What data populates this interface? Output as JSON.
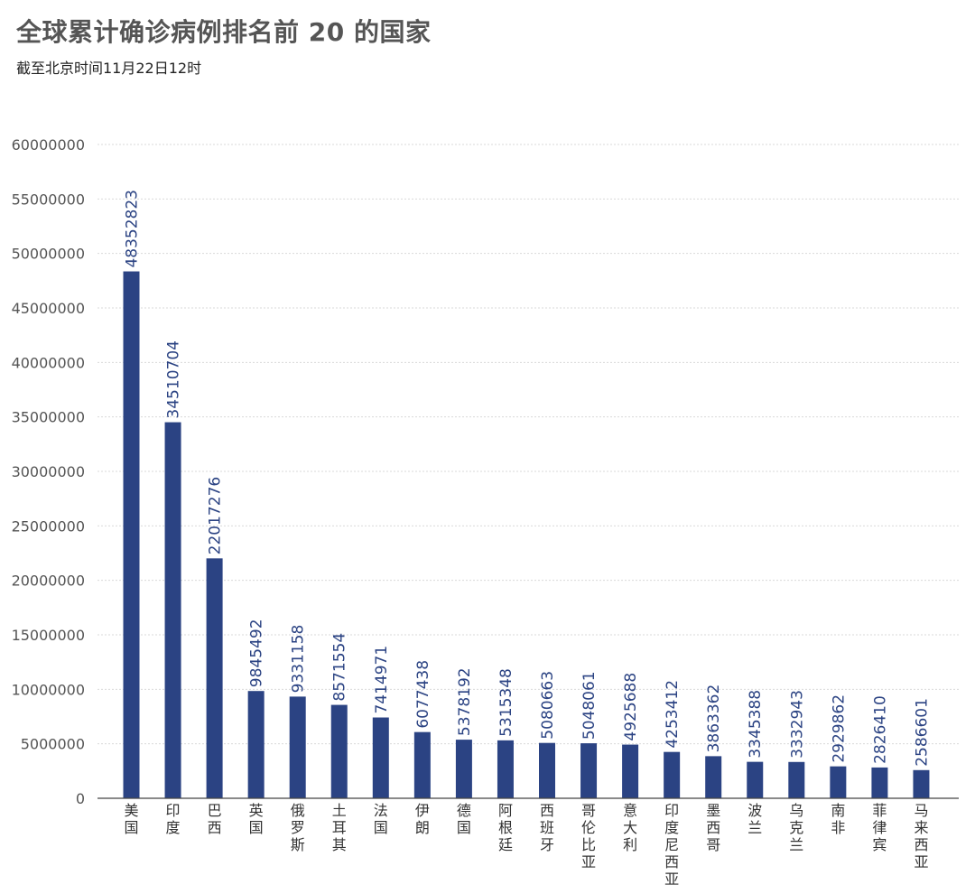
{
  "header": {
    "title": "全球累计确诊病例排名前 20 的国家",
    "subtitle": "截至北京时间11月22日12时"
  },
  "colors": {
    "bar": "#2b4383",
    "grid": "#d9d9d9",
    "axis": "#444444"
  },
  "chart_data": {
    "type": "bar",
    "title": "全球累计确诊病例排名前 20 的国家",
    "subtitle": "截至北京时间11月22日12时",
    "xlabel": "",
    "ylabel": "",
    "ylim": [
      0,
      60000000
    ],
    "yticks": [
      0,
      5000000,
      10000000,
      15000000,
      20000000,
      25000000,
      30000000,
      35000000,
      40000000,
      45000000,
      50000000,
      55000000,
      60000000
    ],
    "grid": true,
    "categories": [
      "美国",
      "印度",
      "巴西",
      "英国",
      "俄罗斯",
      "土耳其",
      "法国",
      "伊朗",
      "德国",
      "阿根廷",
      "西班牙",
      "哥伦比亚",
      "意大利",
      "印度尼西亚",
      "墨西哥",
      "波兰",
      "乌克兰",
      "南非",
      "菲律宾",
      "马来西亚"
    ],
    "values": [
      48352823,
      34510704,
      22017276,
      9845492,
      9331158,
      8571554,
      7414971,
      6077438,
      5378192,
      5315348,
      5080663,
      5048061,
      4925688,
      4253412,
      3863362,
      3345388,
      3332943,
      2929862,
      2826410,
      2586601
    ]
  }
}
